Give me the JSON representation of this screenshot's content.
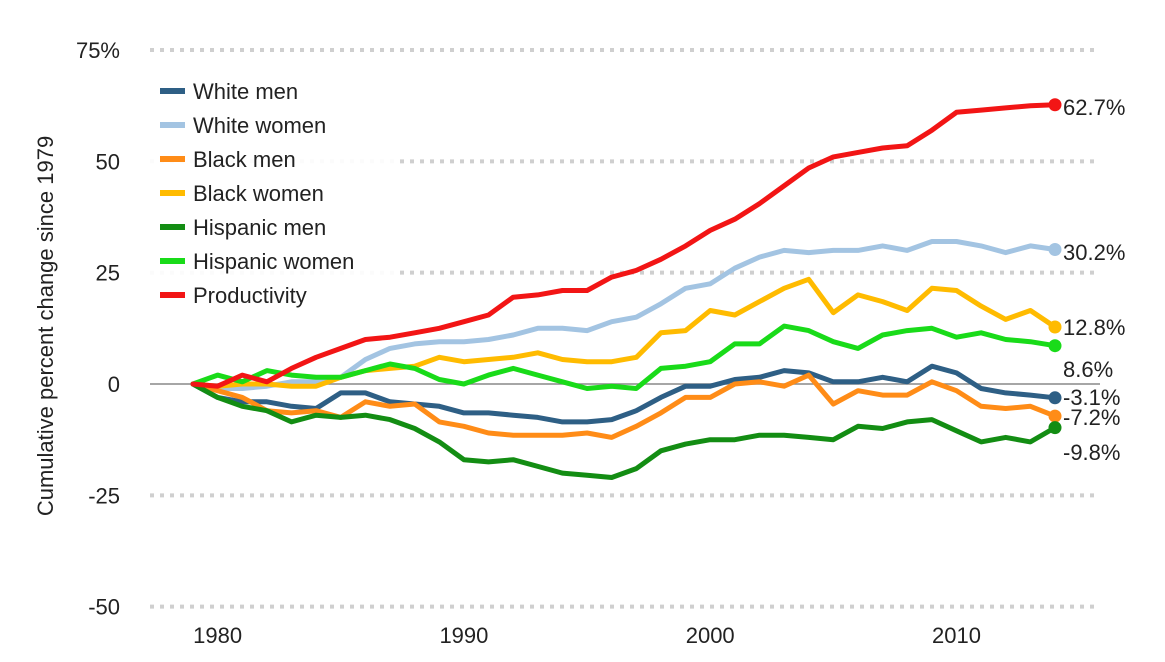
{
  "chart_data": {
    "type": "line",
    "title": "",
    "ylabel": "Cumulative percent change since 1979",
    "xlabel": "",
    "x": [
      1979,
      1980,
      1981,
      1982,
      1983,
      1984,
      1985,
      1986,
      1987,
      1988,
      1989,
      1990,
      1991,
      1992,
      1993,
      1994,
      1995,
      1996,
      1997,
      1998,
      1999,
      2000,
      2001,
      2002,
      2003,
      2004,
      2005,
      2006,
      2007,
      2008,
      2009,
      2010,
      2011,
      2012,
      2013,
      2014
    ],
    "xlim": [
      1977,
      2016
    ],
    "ylim": [
      -50,
      75
    ],
    "x_ticks": [
      1980,
      1990,
      2000,
      2010
    ],
    "y_ticks": [
      75,
      50,
      25,
      0,
      -25,
      -50
    ],
    "y_tick_labels": [
      "75%",
      "50",
      "25",
      "0",
      "-25",
      "-50"
    ],
    "grid": true,
    "legend_position": "top-left",
    "series": [
      {
        "name": "White men",
        "color": "#2e5f85",
        "end_label": "-3.1%",
        "values": [
          0,
          -3,
          -4,
          -4,
          -5,
          -5.5,
          -2,
          -2,
          -4,
          -4.5,
          -5,
          -6.5,
          -6.5,
          -7,
          -7.5,
          -8.5,
          -8.5,
          -8,
          -6,
          -3,
          -0.5,
          -0.5,
          1,
          1.5,
          3,
          2.5,
          0.5,
          0.5,
          1.5,
          0.5,
          4,
          2.5,
          -1,
          -2,
          -2.5,
          -3.1
        ]
      },
      {
        "name": "White women",
        "color": "#a3c4e2",
        "end_label": "30.2%",
        "values": [
          0,
          -1,
          -1,
          -0.5,
          0.5,
          0.5,
          1.5,
          5.5,
          8,
          9,
          9.5,
          9.5,
          10,
          11,
          12.5,
          12.5,
          12,
          14,
          15,
          18,
          21.5,
          22.5,
          26,
          28.5,
          30,
          29.5,
          30,
          30,
          31,
          30,
          32,
          32,
          31,
          29.5,
          31,
          30.2
        ]
      },
      {
        "name": "Black men",
        "color": "#ff8c17",
        "end_label": "-7.2%",
        "values": [
          0,
          -1.5,
          -3,
          -6,
          -6.5,
          -6,
          -7.5,
          -4,
          -5,
          -4.5,
          -8.5,
          -9.5,
          -11,
          -11.5,
          -11.5,
          -11.5,
          -11,
          -12,
          -9.5,
          -6.5,
          -3,
          -3,
          0,
          0.5,
          -0.5,
          2,
          -4.5,
          -1.5,
          -2.5,
          -2.5,
          0.5,
          -1.5,
          -5,
          -5.5,
          -5,
          -7.2
        ]
      },
      {
        "name": "Black women",
        "color": "#ffbb00",
        "end_label": "12.8%",
        "values": [
          0,
          -0.5,
          0,
          0,
          -0.5,
          -0.5,
          1.5,
          3,
          3.5,
          4,
          6,
          5,
          5.5,
          6,
          7,
          5.5,
          5,
          5,
          6,
          11.5,
          12,
          16.5,
          15.5,
          18.5,
          21.5,
          23.5,
          16,
          20,
          18.5,
          16.5,
          21.5,
          21,
          17.5,
          14.5,
          16.5,
          12.8
        ]
      },
      {
        "name": "Hispanic men",
        "color": "#138d13",
        "end_label": "-9.8%",
        "values": [
          0,
          -3,
          -5,
          -6,
          -8.5,
          -7,
          -7.5,
          -7,
          -8,
          -10,
          -13,
          -17,
          -17.5,
          -17,
          -18.5,
          -20,
          -20.5,
          -21,
          -19,
          -15,
          -13.5,
          -12.5,
          -12.5,
          -11.5,
          -11.5,
          -12,
          -12.5,
          -9.5,
          -10,
          -8.5,
          -8,
          -10.5,
          -13,
          -12,
          -13,
          -9.8
        ]
      },
      {
        "name": "Hispanic women",
        "color": "#19db19",
        "end_label": "8.6%",
        "values": [
          0,
          2,
          0.5,
          3,
          2,
          1.5,
          1.5,
          3,
          4.5,
          3.5,
          1,
          0,
          2,
          3.5,
          2,
          0.5,
          -1,
          -0.5,
          -1,
          3.5,
          4,
          5,
          9,
          9,
          13,
          12,
          9.5,
          8,
          11,
          12,
          12.5,
          10.5,
          11.5,
          10,
          9.5,
          8.6
        ]
      },
      {
        "name": "Productivity",
        "color": "#f21515",
        "end_label": "62.7%",
        "values": [
          0,
          -0.5,
          2,
          0.5,
          3.5,
          6,
          8,
          10,
          10.5,
          11.5,
          12.5,
          14,
          15.5,
          19.5,
          20,
          21,
          21,
          24,
          25.5,
          28,
          31,
          34.5,
          37,
          40.5,
          44.5,
          48.5,
          51,
          52,
          53,
          53.5,
          57,
          61,
          61.5,
          62,
          62.5,
          62.7
        ]
      }
    ]
  }
}
